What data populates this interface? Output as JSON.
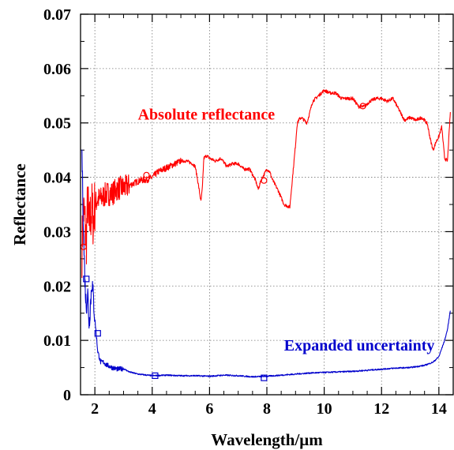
{
  "chart_data": {
    "type": "line",
    "title": "",
    "xlabel": "Wavelength/μm",
    "ylabel": "Reflectance",
    "xlim": [
      1.5,
      14.5
    ],
    "ylim": [
      0,
      0.07
    ],
    "xticks": [
      2,
      4,
      6,
      8,
      10,
      12,
      14
    ],
    "xtick_labels": [
      "2",
      "4",
      "6",
      "8",
      "10",
      "12",
      "14"
    ],
    "yticks": [
      0,
      0.01,
      0.02,
      0.03,
      0.04,
      0.05,
      0.06,
      0.07
    ],
    "ytick_labels": [
      "0",
      "0.01",
      "0.02",
      "0.03",
      "0.04",
      "0.05",
      "0.06",
      "0.07"
    ],
    "grid": true,
    "series": [
      {
        "name": "Absolute reflectance",
        "color": "#ff0000",
        "noisy": true,
        "x": [
          1.55,
          1.6,
          1.65,
          1.7,
          1.75,
          1.8,
          1.85,
          1.9,
          1.95,
          2.0,
          2.1,
          2.2,
          2.4,
          2.6,
          2.8,
          3.0,
          3.2,
          3.4,
          3.6,
          3.8,
          4.0,
          4.2,
          4.4,
          4.6,
          4.8,
          5.0,
          5.2,
          5.4,
          5.5,
          5.6,
          5.7,
          5.75,
          5.8,
          5.9,
          6.0,
          6.2,
          6.4,
          6.6,
          6.8,
          7.0,
          7.2,
          7.4,
          7.6,
          7.7,
          7.8,
          7.9,
          8.0,
          8.1,
          8.2,
          8.4,
          8.6,
          8.8,
          9.0,
          9.05,
          9.1,
          9.2,
          9.4,
          9.6,
          9.8,
          10.0,
          10.2,
          10.4,
          10.6,
          10.8,
          11.0,
          11.2,
          11.4,
          11.6,
          11.8,
          12.0,
          12.2,
          12.4,
          12.6,
          12.8,
          13.0,
          13.2,
          13.4,
          13.5,
          13.6,
          13.7,
          13.8,
          13.9,
          14.0,
          14.1,
          14.2,
          14.3,
          14.4
        ],
        "y": [
          0.027,
          0.034,
          0.032,
          0.028,
          0.036,
          0.03,
          0.033,
          0.034,
          0.032,
          0.035,
          0.036,
          0.036,
          0.037,
          0.037,
          0.038,
          0.038,
          0.0385,
          0.039,
          0.0395,
          0.0395,
          0.04,
          0.041,
          0.0415,
          0.042,
          0.0425,
          0.043,
          0.043,
          0.0425,
          0.042,
          0.039,
          0.0355,
          0.038,
          0.0435,
          0.044,
          0.0435,
          0.043,
          0.0435,
          0.042,
          0.0425,
          0.0425,
          0.0415,
          0.0415,
          0.0395,
          0.0378,
          0.0395,
          0.0405,
          0.0415,
          0.041,
          0.0395,
          0.0375,
          0.035,
          0.0345,
          0.046,
          0.0495,
          0.0505,
          0.051,
          0.05,
          0.054,
          0.055,
          0.056,
          0.0555,
          0.0555,
          0.0545,
          0.0545,
          0.0545,
          0.053,
          0.053,
          0.054,
          0.0545,
          0.0545,
          0.054,
          0.0545,
          0.0525,
          0.0505,
          0.051,
          0.0505,
          0.051,
          0.0505,
          0.0498,
          0.047,
          0.045,
          0.0465,
          0.0475,
          0.0493,
          0.0435,
          0.043,
          0.052
        ],
        "markers": [
          [
            1.6,
            0.0272
          ],
          [
            3.8,
            0.0404
          ],
          [
            7.9,
            0.0394
          ],
          [
            11.35,
            0.0531
          ]
        ]
      },
      {
        "name": "Expanded uncertainty",
        "color": "#0000cc",
        "noisy": false,
        "x": [
          1.55,
          1.58,
          1.62,
          1.66,
          1.7,
          1.75,
          1.8,
          1.85,
          1.9,
          2.0,
          2.05,
          2.1,
          2.15,
          2.2,
          2.3,
          2.4,
          2.6,
          2.8,
          3.0,
          3.2,
          3.5,
          4.0,
          4.5,
          5.0,
          5.5,
          6.0,
          6.5,
          7.0,
          7.5,
          8.0,
          8.5,
          9.0,
          9.5,
          10.0,
          10.5,
          11.0,
          11.5,
          12.0,
          12.5,
          13.0,
          13.5,
          13.8,
          14.0,
          14.1,
          14.2,
          14.3,
          14.4
        ],
        "y": [
          0.0445,
          0.036,
          0.027,
          0.02,
          0.016,
          0.019,
          0.013,
          0.017,
          0.021,
          0.014,
          0.011,
          0.008,
          0.007,
          0.006,
          0.006,
          0.0055,
          0.005,
          0.0047,
          0.0048,
          0.0042,
          0.0038,
          0.0035,
          0.0036,
          0.0035,
          0.0035,
          0.0034,
          0.0036,
          0.0035,
          0.0033,
          0.0034,
          0.0036,
          0.0038,
          0.004,
          0.0041,
          0.0042,
          0.0043,
          0.0045,
          0.0047,
          0.0049,
          0.005,
          0.0054,
          0.006,
          0.007,
          0.0085,
          0.01,
          0.012,
          0.0155
        ],
        "markers": [
          [
            1.7,
            0.0213
          ],
          [
            2.1,
            0.0113
          ],
          [
            4.1,
            0.0035
          ],
          [
            7.9,
            0.0031
          ]
        ]
      }
    ],
    "annotations": [
      {
        "text": "Absolute reflectance",
        "x": 3.5,
        "y": 0.0506,
        "color": "#ff0000"
      },
      {
        "text": "Expanded uncertainty",
        "x": 8.6,
        "y": 0.0081,
        "color": "#0000cc"
      }
    ]
  }
}
